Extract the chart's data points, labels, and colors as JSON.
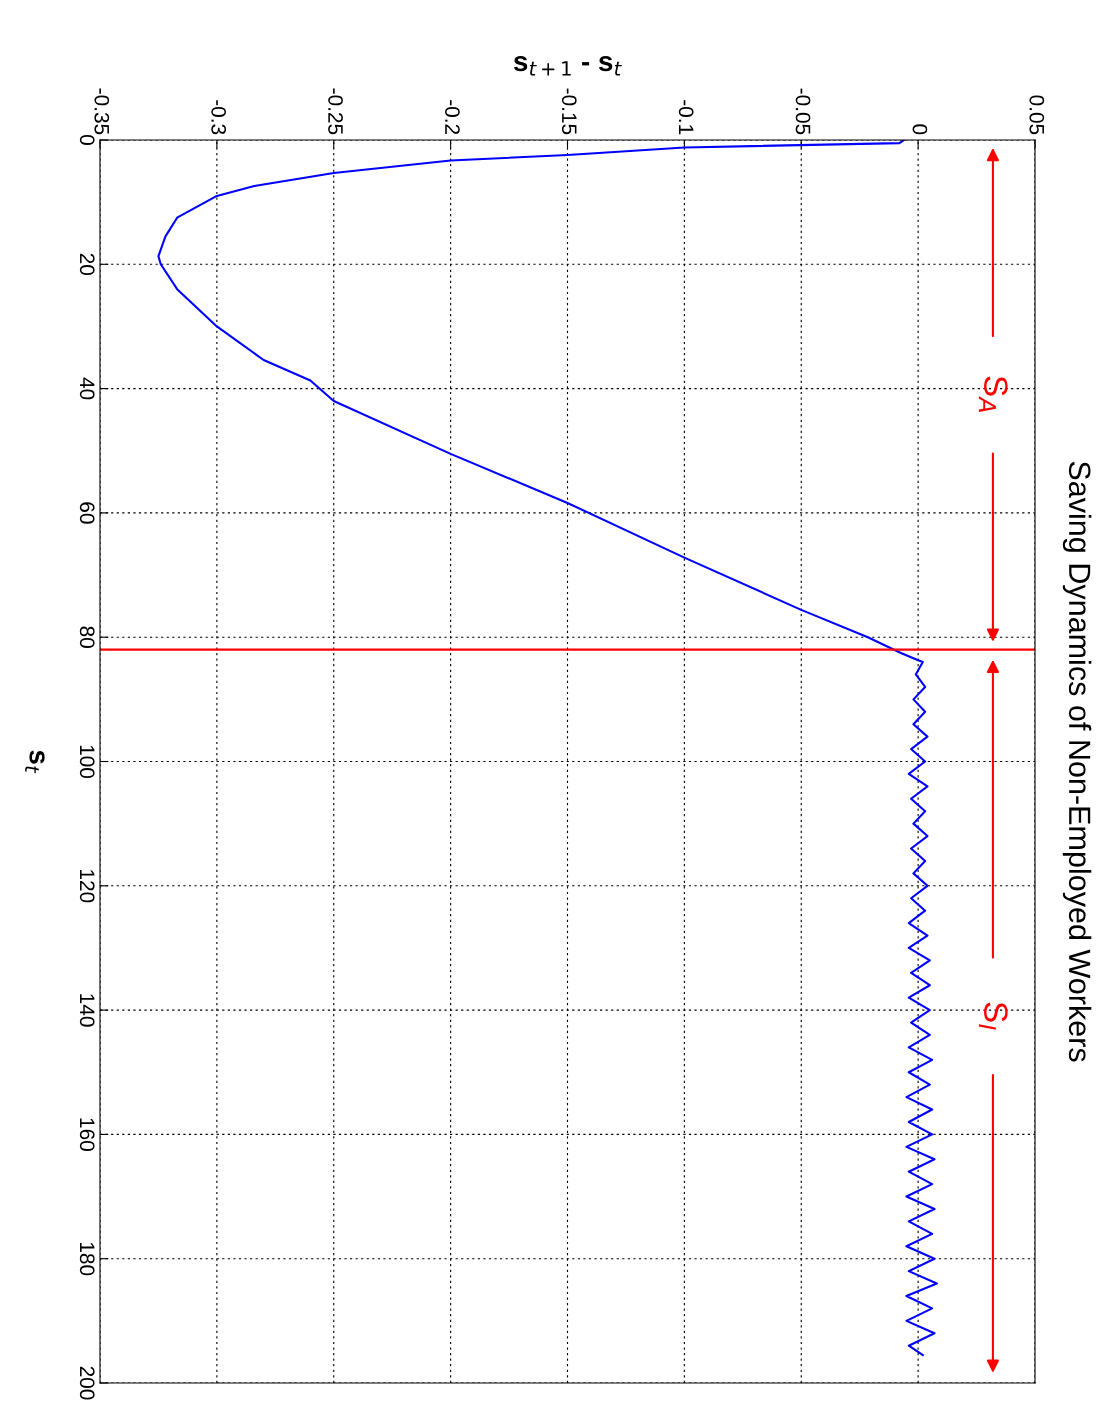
{
  "chart_data": {
    "type": "line",
    "title": "Saving Dynamics of Non-Employed Workers",
    "xlabel": "s$_{t+1}$ - s$_{t}$",
    "ylabel": "s$_{t}$",
    "series": [
      {
        "color": "#0000ff",
        "values": [
          0,
          0.5,
          1.2,
          2.4,
          3.3,
          5.3,
          7.4,
          9,
          12.5,
          15.5,
          18.7,
          20,
          24,
          30,
          35.4,
          38.7,
          42,
          50.5,
          58.4,
          67.2,
          75.6,
          80,
          82.5,
          83.7,
          84,
          86,
          88,
          90,
          92,
          94,
          96,
          98,
          100,
          102,
          104,
          106,
          108,
          110,
          112,
          114,
          116,
          118,
          120,
          122,
          124,
          126,
          128,
          130,
          132,
          134,
          136,
          138,
          140,
          142,
          144,
          146,
          148,
          150,
          152,
          154,
          156,
          158,
          160,
          162,
          164,
          166,
          168,
          170,
          172,
          174,
          176,
          178,
          180,
          182,
          184,
          186,
          188,
          190,
          192,
          194,
          195.5
        ],
        "x": [
          -0.006,
          -0.008,
          -0.1,
          -0.15,
          -0.2,
          -0.25,
          -0.284,
          -0.3,
          -0.317,
          -0.322,
          -0.325,
          -0.324,
          -0.317,
          -0.3,
          -0.28,
          -0.26,
          -0.25,
          -0.2,
          -0.15,
          -0.1,
          -0.05,
          -0.0215,
          -0.0076,
          0,
          0.002,
          -0.001,
          0.003,
          -0.002,
          0.003,
          -0.002,
          0.004,
          -0.003,
          0.003,
          -0.004,
          0.004,
          -0.003,
          0.003,
          -0.002,
          0.004,
          -0.003,
          0.003,
          -0.002,
          0.004,
          -0.003,
          0.003,
          -0.004,
          0.004,
          -0.004,
          0.005,
          -0.003,
          0.005,
          -0.004,
          0.005,
          -0.003,
          0.005,
          -0.004,
          0.006,
          -0.004,
          0.005,
          -0.005,
          0.006,
          -0.004,
          0.006,
          -0.005,
          0.007,
          -0.004,
          0.006,
          -0.005,
          0.007,
          -0.004,
          0.006,
          -0.005,
          0.007,
          -0.004,
          0.008,
          -0.005,
          0.006,
          -0.005,
          0.007,
          -0.004,
          0.002
        ]
      }
    ],
    "xlim": [
      -0.35,
      0.05
    ],
    "xticks": [
      -0.35,
      -0.3,
      -0.25,
      -0.2,
      -0.15,
      -0.1,
      -0.05,
      0,
      0.05
    ],
    "ylim": [
      200,
      0
    ],
    "yticks": [
      0,
      20,
      40,
      60,
      80,
      100,
      120,
      140,
      160,
      180,
      200
    ],
    "ref_lines": [
      {
        "axis": "y",
        "value": 82,
        "color": "#ff0000"
      }
    ],
    "annotations": [
      "S$_{A}$",
      "S$_{I}$"
    ],
    "grid": true,
    "line_style": "solid",
    "marker": "none"
  }
}
